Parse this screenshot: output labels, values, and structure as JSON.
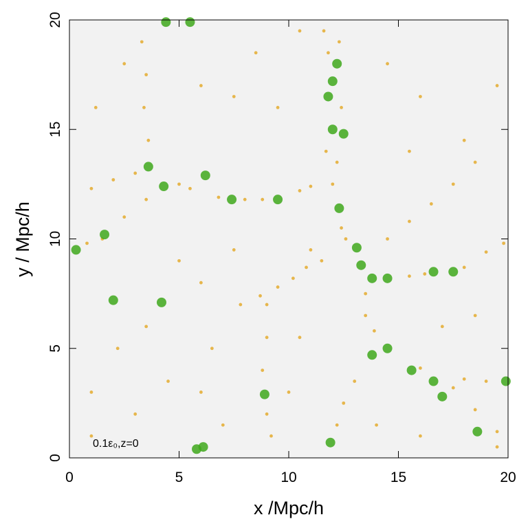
{
  "chart_data": {
    "type": "scatter",
    "annotation": "0.1ε₀,z=0",
    "x_label": "x /Mpc/h",
    "y_label": "y / Mpc/h",
    "xlim": [
      0,
      20
    ],
    "ylim": [
      0,
      20
    ],
    "xticks": [
      0,
      5,
      10,
      15,
      20
    ],
    "yticks": [
      0,
      5,
      10,
      15,
      20
    ],
    "background": "#f2f2f2",
    "series": [
      {
        "color": "#e6b64c",
        "x": [
          11.6,
          12.3,
          11.8,
          12.4,
          11.7,
          12.2,
          12,
          12.4,
          12.6,
          11.5,
          10.8,
          10.2,
          9.5,
          8.7,
          7.8,
          11,
          1,
          2,
          3,
          5,
          5.5,
          6.8,
          8,
          8.8,
          10.5,
          11,
          13.5,
          13.5,
          13.9,
          13,
          12.5,
          12.2,
          16,
          17.5,
          18.5,
          19.5,
          18,
          19,
          15.5,
          16.2,
          18,
          19,
          19.8,
          14.5,
          15.5,
          16.5,
          17.5,
          18.5,
          9,
          9,
          8.8,
          9,
          9.2,
          0.8,
          1.5,
          2.5,
          3.5,
          3.6,
          3.4,
          3.5,
          3.3,
          1,
          2.2,
          3,
          4.5,
          6.5,
          7,
          5,
          6,
          7.5,
          2.5,
          1.2,
          6,
          7.5,
          8.5,
          9.5,
          10.5,
          14.5,
          16,
          18,
          19.5,
          15.5,
          17,
          18.5,
          16,
          19.5,
          14,
          10.5,
          10,
          6,
          3.5,
          1
        ],
        "values": [
          19.5,
          19,
          18.5,
          16,
          14,
          13.5,
          12.5,
          10.5,
          10,
          9,
          8.7,
          8.2,
          7.8,
          7.4,
          7,
          9.5,
          12.3,
          12.7,
          13,
          12.5,
          12.3,
          11.9,
          11.8,
          11.8,
          12.2,
          12.4,
          7.5,
          6.5,
          5.8,
          3.5,
          2.5,
          1.5,
          4.1,
          3.2,
          2.2,
          1.2,
          3.6,
          3.5,
          8.3,
          8.4,
          8.7,
          9.4,
          9.8,
          10,
          10.8,
          11.6,
          12.5,
          13.5,
          7,
          5.5,
          4,
          2,
          1,
          9.8,
          10,
          11,
          11.8,
          14.5,
          16,
          17.5,
          19,
          3,
          5,
          2,
          3.5,
          5,
          1.5,
          9,
          8,
          9.5,
          18,
          16,
          17,
          16.5,
          18.5,
          16,
          19.5,
          18,
          16.5,
          14.5,
          17,
          14,
          6,
          6.5,
          1,
          0.5,
          1.5,
          5.5,
          3,
          3,
          6,
          1
        ]
      },
      {
        "color": "#3fa81c",
        "x": [
          12,
          12,
          12.3,
          13.3,
          13.8,
          14.5,
          9.5,
          7.4,
          3.6,
          14.5,
          13.8,
          15.6,
          16.6,
          17.5,
          16.6,
          11.9,
          5.8,
          6.1,
          8.9,
          1.6,
          0.3,
          4.2,
          2,
          6.2,
          4.3,
          17,
          18.6,
          19.9,
          4.4,
          5.5,
          12.2,
          11.8,
          12.5,
          13.1
        ],
        "values": [
          17.2,
          15,
          11.4,
          8.8,
          8.2,
          8.2,
          11.8,
          11.8,
          13.3,
          5,
          4.7,
          4,
          3.5,
          8.5,
          8.5,
          0.7,
          0.4,
          0.5,
          2.9,
          10.2,
          9.5,
          7.1,
          7.2,
          12.9,
          12.4,
          2.8,
          1.2,
          3.5,
          19.9,
          19.9,
          18,
          16.5,
          14.8,
          9.6
        ]
      }
    ]
  }
}
